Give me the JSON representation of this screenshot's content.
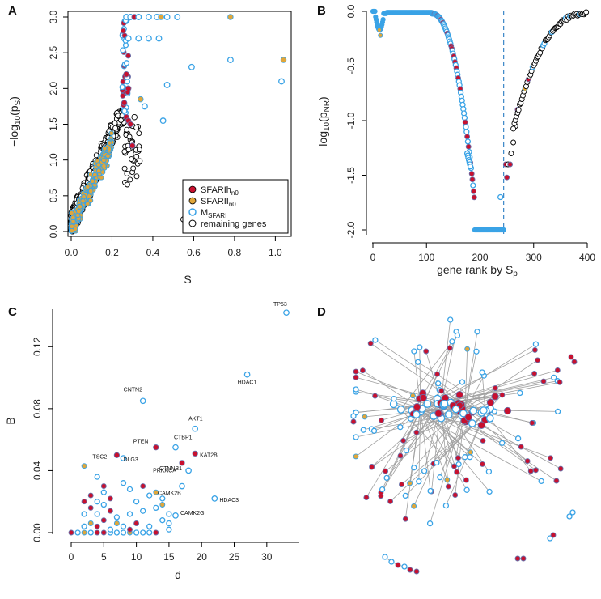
{
  "colors": {
    "hc": "#c8102e",
    "lc": "#e0a63a",
    "ms": "#3aa3e6",
    "other": "#000000",
    "edge": "#a0a0a0",
    "vline": "#3a86c8"
  },
  "chart_data": [
    {
      "panel": "A",
      "type": "scatter",
      "xlabel": "S",
      "ylabel": "-log10(ps)",
      "xlim": [
        0,
        1.05
      ],
      "ylim": [
        0,
        3.0
      ],
      "x_ticks": [
        "0.0",
        "0.2",
        "0.4",
        "0.6",
        "0.8",
        "1.0"
      ],
      "y_ticks": [
        "0.0",
        "0.5",
        "1.0",
        "1.5",
        "2.0",
        "2.5",
        "3.0"
      ],
      "legend": [
        "SFARIhn0",
        "SFARIIn0",
        "MSFARI",
        "remaining genes"
      ],
      "highlight_points": [
        {
          "x": 0.27,
          "y": 3.0,
          "group": "ms"
        },
        {
          "x": 0.29,
          "y": 3.0,
          "group": "ms"
        },
        {
          "x": 0.31,
          "y": 3.0,
          "group": "hc"
        },
        {
          "x": 0.33,
          "y": 3.0,
          "group": "ms"
        },
        {
          "x": 0.38,
          "y": 3.0,
          "group": "ms"
        },
        {
          "x": 0.42,
          "y": 3.0,
          "group": "ms"
        },
        {
          "x": 0.44,
          "y": 3.0,
          "group": "lc"
        },
        {
          "x": 0.47,
          "y": 3.0,
          "group": "ms"
        },
        {
          "x": 0.52,
          "y": 3.0,
          "group": "ms"
        },
        {
          "x": 0.78,
          "y": 3.0,
          "group": "lc"
        },
        {
          "x": 0.28,
          "y": 2.7,
          "group": "ms"
        },
        {
          "x": 0.33,
          "y": 2.7,
          "group": "ms"
        },
        {
          "x": 0.38,
          "y": 2.7,
          "group": "ms"
        },
        {
          "x": 0.43,
          "y": 2.7,
          "group": "ms"
        },
        {
          "x": 0.59,
          "y": 2.3,
          "group": "ms"
        },
        {
          "x": 0.78,
          "y": 2.4,
          "group": "ms"
        },
        {
          "x": 1.04,
          "y": 2.4,
          "group": "lc"
        },
        {
          "x": 1.03,
          "y": 2.1,
          "group": "ms"
        },
        {
          "x": 0.45,
          "y": 1.55,
          "group": "ms"
        },
        {
          "x": 0.47,
          "y": 2.05,
          "group": "ms"
        },
        {
          "x": 0.55,
          "y": 0.17,
          "group": "other"
        },
        {
          "x": 0.27,
          "y": 1.6,
          "group": "hc"
        },
        {
          "x": 0.28,
          "y": 1.55,
          "group": "hc"
        },
        {
          "x": 0.29,
          "y": 1.5,
          "group": "hc"
        },
        {
          "x": 0.3,
          "y": 1.2,
          "group": "hc"
        },
        {
          "x": 0.27,
          "y": 2.2,
          "group": "hc"
        },
        {
          "x": 0.28,
          "y": 2.0,
          "group": "hc"
        },
        {
          "x": 0.26,
          "y": 1.8,
          "group": "hc"
        },
        {
          "x": 0.34,
          "y": 1.85,
          "group": "lc"
        },
        {
          "x": 0.36,
          "y": 1.75,
          "group": "ms"
        },
        {
          "x": 0.31,
          "y": 1.6,
          "group": "other"
        }
      ]
    },
    {
      "panel": "B",
      "type": "scatter",
      "xlabel": "gene rank by Sp",
      "ylabel": "log10(pNR)",
      "xlim": [
        0,
        400
      ],
      "ylim": [
        -2.0,
        0.0
      ],
      "x_ticks": [
        "0",
        "100",
        "200",
        "300",
        "400"
      ],
      "y_ticks": [
        "0.0",
        "-0.5",
        "-1.0",
        "-1.5",
        "-2.0"
      ],
      "dashed_vline_x": 244
    },
    {
      "panel": "C",
      "type": "scatter",
      "xlabel": "d",
      "ylabel": "B",
      "xlim": [
        0,
        33
      ],
      "ylim": [
        0,
        0.14
      ],
      "x_ticks": [
        "0",
        "5",
        "10",
        "15",
        "20",
        "25",
        "30"
      ],
      "y_ticks": [
        "0.00",
        "0.04",
        "0.08",
        "0.12"
      ],
      "labeled_points": [
        {
          "x": 33,
          "y": 0.142,
          "label": "TP53",
          "group": "ms"
        },
        {
          "x": 27,
          "y": 0.102,
          "label": "HDAC1",
          "group": "ms"
        },
        {
          "x": 11,
          "y": 0.085,
          "label": "CNTN2",
          "group": "ms"
        },
        {
          "x": 19,
          "y": 0.067,
          "label": "AKT1",
          "group": "ms"
        },
        {
          "x": 13,
          "y": 0.055,
          "label": "PTEN",
          "group": "hc"
        },
        {
          "x": 16,
          "y": 0.055,
          "label": "CTBP1",
          "group": "ms"
        },
        {
          "x": 7,
          "y": 0.05,
          "label": "TSC2",
          "group": "hc"
        },
        {
          "x": 8,
          "y": 0.048,
          "label": "DLG3",
          "group": "ms"
        },
        {
          "x": 17,
          "y": 0.045,
          "label": "CTNNB1",
          "group": "hc"
        },
        {
          "x": 19,
          "y": 0.051,
          "label": "KAT2B",
          "group": "hc"
        },
        {
          "x": 18,
          "y": 0.04,
          "label": "PRKACA",
          "group": "ms"
        },
        {
          "x": 17,
          "y": 0.03,
          "label": "CAMK2B",
          "group": "ms"
        },
        {
          "x": 22,
          "y": 0.022,
          "label": "HDAC3",
          "group": "ms"
        },
        {
          "x": 16,
          "y": 0.011,
          "label": "CAMK2G",
          "group": "ms"
        }
      ]
    },
    {
      "panel": "D",
      "type": "network",
      "description_groups": [
        "hc",
        "lc",
        "ms"
      ]
    }
  ]
}
